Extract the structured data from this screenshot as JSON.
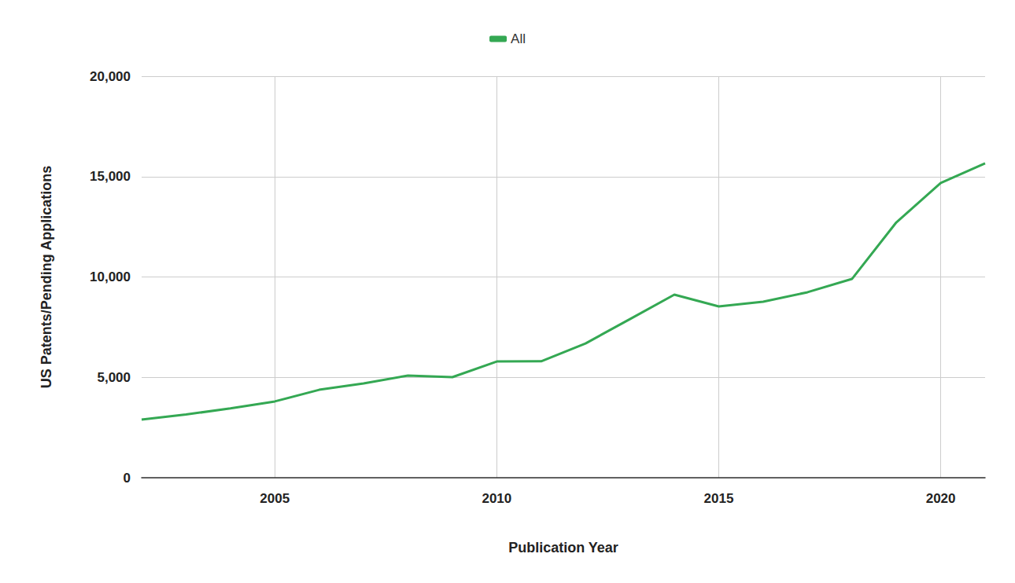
{
  "chart_data": {
    "type": "line",
    "x_label": "Publication Year",
    "y_label": "US Patents/Pending Applications",
    "x": [
      2002,
      2003,
      2004,
      2005,
      2006,
      2007,
      2008,
      2009,
      2010,
      2011,
      2012,
      2013,
      2014,
      2015,
      2016,
      2017,
      2018,
      2019,
      2020,
      2021
    ],
    "series": [
      {
        "name": "All",
        "color": "#34a853",
        "values": [
          2900,
          3150,
          3450,
          3800,
          4380,
          4700,
          5090,
          5010,
          5790,
          5800,
          6690,
          7900,
          9120,
          8530,
          8770,
          9240,
          9900,
          12720,
          14680,
          15660
        ]
      }
    ],
    "xlim": [
      2002,
      2021
    ],
    "xticks": [
      2005,
      2010,
      2015,
      2020
    ],
    "ylim": [
      0,
      20000
    ],
    "yticks": [
      0,
      5000,
      10000,
      15000,
      20000
    ],
    "grid": true,
    "legend": "top"
  }
}
